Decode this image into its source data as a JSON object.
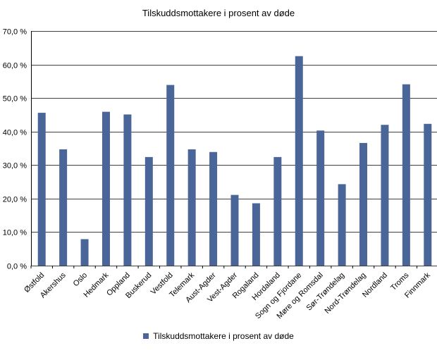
{
  "chart_data": {
    "type": "bar",
    "title": "Tilskuddsmottakere i prosent av døde",
    "xlabel": "",
    "ylabel": "",
    "ylim": [
      0,
      70
    ],
    "yticks": [
      "0,0 %",
      "10,0 %",
      "20,0 %",
      "30,0 %",
      "40,0 %",
      "50,0 %",
      "60,0 %",
      "70,0 %"
    ],
    "grid": true,
    "legend_position": "bottom",
    "bar_color": "#4a6598",
    "categories": [
      "Østfold",
      "Akershus",
      "Oslo",
      "Hedmark",
      "Oppland",
      "Buskerud",
      "Vestfold",
      "Telemark",
      "Aust-Agder",
      "Vest-Agder",
      "Rogaland",
      "Hordaland",
      "Sogn og Fjordane",
      "Møre og Romsdal",
      "Sør-Trøndelag",
      "Nord-Trøndelag",
      "Nordland",
      "Troms",
      "Finnmark"
    ],
    "series": [
      {
        "name": "Tilskuddsmottakere i prosent av døde",
        "values": [
          45.6,
          34.7,
          7.9,
          45.9,
          45.1,
          32.4,
          53.9,
          34.7,
          33.9,
          21.1,
          18.6,
          32.4,
          62.5,
          40.3,
          24.3,
          36.6,
          42.0,
          54.1,
          42.3
        ]
      }
    ]
  }
}
